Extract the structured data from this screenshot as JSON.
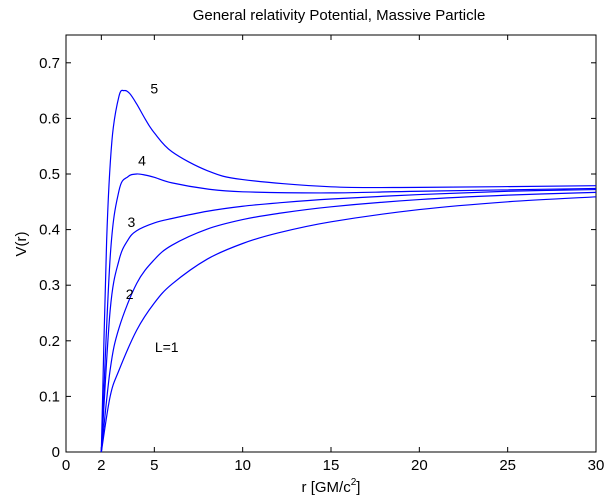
{
  "chart_data": {
    "type": "line",
    "title": "General relativity Potential, Massive Particle",
    "xlabel": "r [GM/c",
    "xlabel_sup": "2",
    "xlabel_end": "]",
    "ylabel": "V(r)",
    "xlim": [
      0,
      30
    ],
    "ylim": [
      0,
      0.75
    ],
    "grid": false,
    "x_ticks": [
      0,
      2,
      5,
      10,
      15,
      20,
      25,
      30
    ],
    "x_tick_labels": [
      "0",
      "2",
      "5",
      "10",
      "15",
      "20",
      "25",
      "30"
    ],
    "y_ticks": [
      0,
      0.1,
      0.2,
      0.3,
      0.4,
      0.5,
      0.6,
      0.7
    ],
    "y_tick_labels": [
      "0",
      "0.1",
      "0.2",
      "0.3",
      "0.4",
      "0.5",
      "0.6",
      "0.7"
    ],
    "line_color": "#0000ff",
    "series": [
      {
        "label": "L=1",
        "x": [
          2,
          2.5,
          3,
          4,
          5,
          6,
          8,
          10,
          12,
          15,
          20,
          25,
          30
        ],
        "values": [
          0,
          0.1,
          0.147,
          0.219,
          0.268,
          0.302,
          0.347,
          0.375,
          0.394,
          0.414,
          0.436,
          0.45,
          0.459
        ]
      },
      {
        "label": "2",
        "x": [
          2,
          2.5,
          3,
          4,
          5,
          6,
          8,
          10,
          12,
          15,
          20,
          25,
          30
        ],
        "values": [
          0,
          0.148,
          0.223,
          0.303,
          0.346,
          0.372,
          0.401,
          0.418,
          0.429,
          0.441,
          0.454,
          0.462,
          0.467
        ]
      },
      {
        "label": "3",
        "x": [
          2,
          2.5,
          3,
          3.5,
          4,
          5,
          6,
          8,
          10,
          12,
          15,
          20,
          25,
          30
        ],
        "values": [
          0,
          0.255,
          0.345,
          0.381,
          0.398,
          0.412,
          0.42,
          0.433,
          0.442,
          0.448,
          0.455,
          0.463,
          0.469,
          0.472
        ]
      },
      {
        "label": "4",
        "x": [
          2,
          2.5,
          3,
          3.5,
          4,
          4.5,
          5,
          6,
          8,
          10,
          15,
          20,
          30
        ],
        "values": [
          0,
          0.35,
          0.47,
          0.495,
          0.5,
          0.498,
          0.494,
          0.484,
          0.473,
          0.468,
          0.466,
          0.469,
          0.474
        ]
      },
      {
        "label": "5",
        "x": [
          2,
          2.3,
          2.6,
          3,
          3.3,
          3.6,
          4,
          4.5,
          5,
          6,
          8,
          10,
          15,
          20,
          30
        ],
        "values": [
          0,
          0.38,
          0.56,
          0.64,
          0.65,
          0.645,
          0.626,
          0.598,
          0.574,
          0.54,
          0.506,
          0.49,
          0.477,
          0.476,
          0.479
        ]
      }
    ],
    "annotations": [
      {
        "text": "5",
        "x": 5.0,
        "y": 0.645
      },
      {
        "text": "4",
        "x": 4.3,
        "y": 0.515
      },
      {
        "text": "3",
        "x": 3.7,
        "y": 0.405
      },
      {
        "text": "2",
        "x": 3.6,
        "y": 0.275
      },
      {
        "text": "L=1",
        "x": 5.7,
        "y": 0.18
      }
    ]
  }
}
